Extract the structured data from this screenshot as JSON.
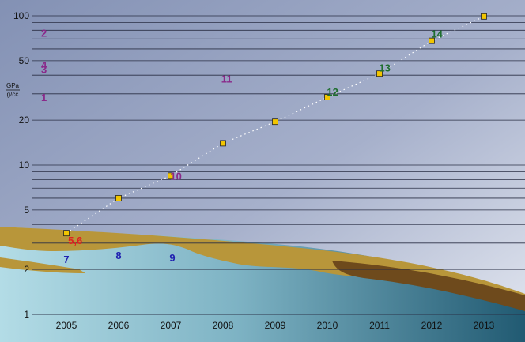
{
  "chart_data": {
    "type": "scatter",
    "x_categories": [
      "2005",
      "2006",
      "2007",
      "2008",
      "2009",
      "2010",
      "2011",
      "2012",
      "2013"
    ],
    "y_scale": "log",
    "ylim": [
      1,
      100
    ],
    "y_ticks": [
      1,
      2,
      5,
      10,
      20,
      50,
      100
    ],
    "y_tick_labels": [
      "1",
      "2",
      "5",
      "10",
      "20",
      "50",
      "100"
    ],
    "y_unit_top": "GPa",
    "y_unit_bottom": "g/cc",
    "grid": true,
    "series": [
      {
        "marker": "square",
        "color": "#f2c500",
        "trend": "dotted",
        "points": [
          {
            "x": "2005",
            "y": 3.5
          },
          {
            "x": "2006",
            "y": 6
          },
          {
            "x": "2007",
            "y": 8.5
          },
          {
            "x": "2008",
            "y": 14
          },
          {
            "x": "2009",
            "y": 19.5
          },
          {
            "x": "2010",
            "y": 28.5
          },
          {
            "x": "2011",
            "y": 41
          },
          {
            "x": "2012",
            "y": 68
          },
          {
            "x": "2013",
            "y": 99
          }
        ]
      }
    ],
    "annotations": [
      {
        "text": "1",
        "x": 2004.57,
        "y": 28.5,
        "color": "#8a2a8a"
      },
      {
        "text": "2",
        "x": 2004.57,
        "y": 77,
        "color": "#8a2a8a"
      },
      {
        "text": "3",
        "x": 2004.57,
        "y": 44,
        "color": "#8a2a8a"
      },
      {
        "text": "4",
        "x": 2004.57,
        "y": 47,
        "color": "#8a2a8a"
      },
      {
        "text": "5,6",
        "x": 2005.17,
        "y": 3.15,
        "color": "#e02020"
      },
      {
        "text": "7",
        "x": 2005.0,
        "y": 2.35,
        "color": "#2020b0"
      },
      {
        "text": "8",
        "x": 2006.0,
        "y": 2.5,
        "color": "#2020b0"
      },
      {
        "text": "9",
        "x": 2007.03,
        "y": 2.4,
        "color": "#2020b0"
      },
      {
        "text": "10",
        "x": 2007.1,
        "y": 8.5,
        "color": "#8a2a8a"
      },
      {
        "text": "11",
        "x": 2008.07,
        "y": 38,
        "color": "#8a2a8a"
      },
      {
        "text": "12",
        "x": 2010.1,
        "y": 31,
        "color": "#1e6e2e"
      },
      {
        "text": "13",
        "x": 2011.1,
        "y": 45,
        "color": "#1e6e2e"
      },
      {
        "text": "14",
        "x": 2012.1,
        "y": 76,
        "color": "#1e6e2e"
      }
    ]
  }
}
